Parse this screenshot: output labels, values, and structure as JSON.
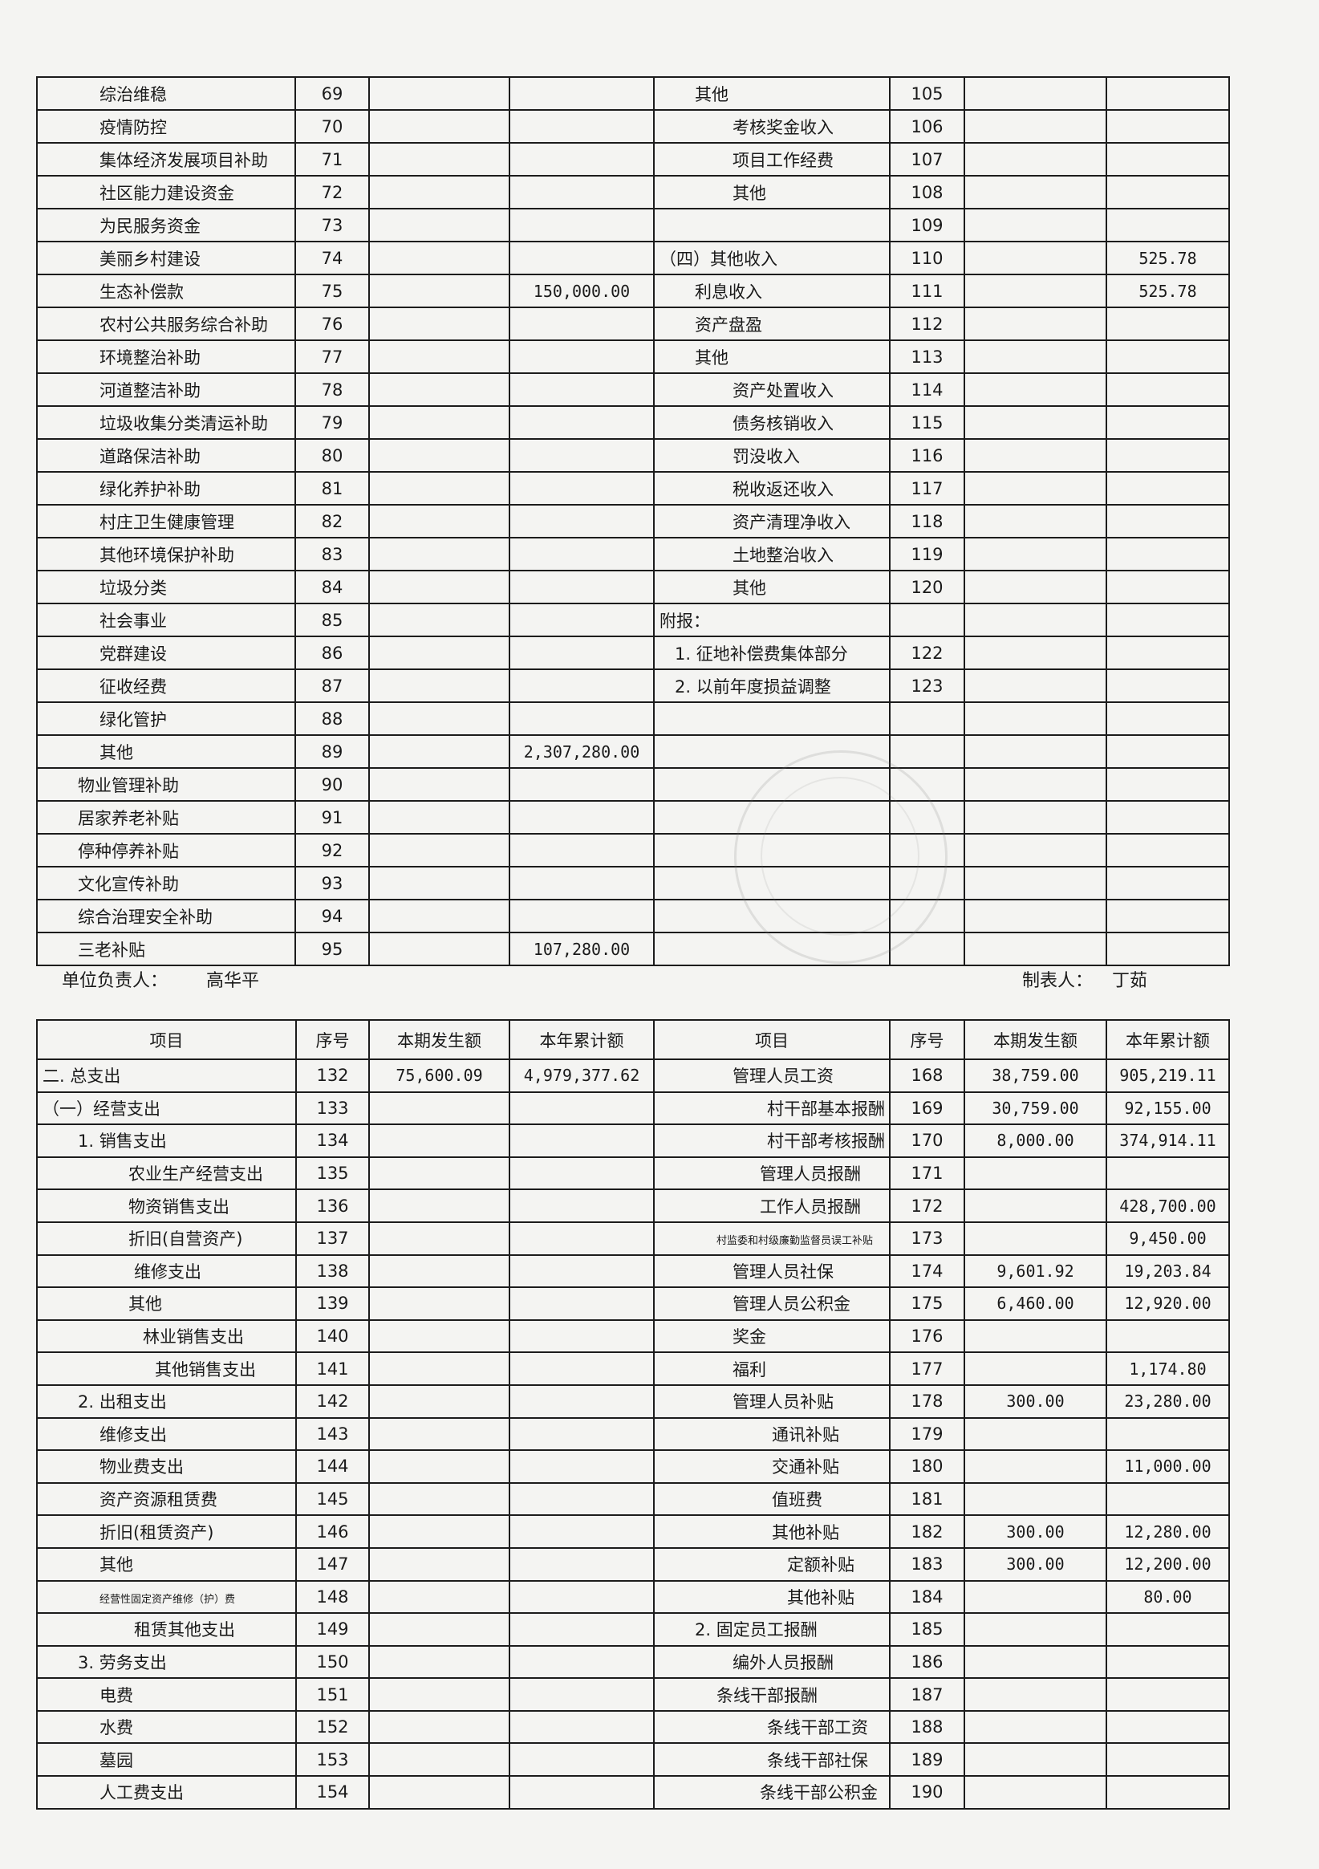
{
  "top_table": {
    "left_rows": [
      {
        "item": "综治维稳",
        "no": "69",
        "period": "",
        "ytd": "",
        "lv": 3
      },
      {
        "item": "疫情防控",
        "no": "70",
        "period": "",
        "ytd": "",
        "lv": 3
      },
      {
        "item": "集体经济发展项目补助",
        "no": "71",
        "period": "",
        "ytd": "",
        "lv": 3
      },
      {
        "item": "社区能力建设资金",
        "no": "72",
        "period": "",
        "ytd": "",
        "lv": 3
      },
      {
        "item": "为民服务资金",
        "no": "73",
        "period": "",
        "ytd": "",
        "lv": 3
      },
      {
        "item": "美丽乡村建设",
        "no": "74",
        "period": "",
        "ytd": "",
        "lv": 3
      },
      {
        "item": "生态补偿款",
        "no": "75",
        "period": "",
        "ytd": "150,000.00",
        "lv": 3
      },
      {
        "item": "农村公共服务综合补助",
        "no": "76",
        "period": "",
        "ytd": "",
        "lv": 3
      },
      {
        "item": "环境整治补助",
        "no": "77",
        "period": "",
        "ytd": "",
        "lv": 3
      },
      {
        "item": "河道整洁补助",
        "no": "78",
        "period": "",
        "ytd": "",
        "lv": 3
      },
      {
        "item": "垃圾收集分类清运补助",
        "no": "79",
        "period": "",
        "ytd": "",
        "lv": 3
      },
      {
        "item": "道路保洁补助",
        "no": "80",
        "period": "",
        "ytd": "",
        "lv": 3
      },
      {
        "item": "绿化养护补助",
        "no": "81",
        "period": "",
        "ytd": "",
        "lv": 3
      },
      {
        "item": "村庄卫生健康管理",
        "no": "82",
        "period": "",
        "ytd": "",
        "lv": 3
      },
      {
        "item": "其他环境保护补助",
        "no": "83",
        "period": "",
        "ytd": "",
        "lv": 3
      },
      {
        "item": "垃圾分类",
        "no": "84",
        "period": "",
        "ytd": "",
        "lv": 3
      },
      {
        "item": "社会事业",
        "no": "85",
        "period": "",
        "ytd": "",
        "lv": 3
      },
      {
        "item": "党群建设",
        "no": "86",
        "period": "",
        "ytd": "",
        "lv": 3
      },
      {
        "item": "征收经费",
        "no": "87",
        "period": "",
        "ytd": "",
        "lv": 3
      },
      {
        "item": "绿化管护",
        "no": "88",
        "period": "",
        "ytd": "",
        "lv": 3
      },
      {
        "item": "其他",
        "no": "89",
        "period": "",
        "ytd": "2,307,280.00",
        "lv": 3
      },
      {
        "item": "物业管理补助",
        "no": "90",
        "period": "",
        "ytd": "",
        "lv": 2
      },
      {
        "item": "居家养老补贴",
        "no": "91",
        "period": "",
        "ytd": "",
        "lv": 2
      },
      {
        "item": "停种停养补贴",
        "no": "92",
        "period": "",
        "ytd": "",
        "lv": 2
      },
      {
        "item": "文化宣传补助",
        "no": "93",
        "period": "",
        "ytd": "",
        "lv": 2
      },
      {
        "item": "综合治理安全补助",
        "no": "94",
        "period": "",
        "ytd": "",
        "lv": 2
      },
      {
        "item": "三老补贴",
        "no": "95",
        "period": "",
        "ytd": "107,280.00",
        "lv": 2
      }
    ],
    "right_rows": [
      {
        "item": "其他",
        "no": "105",
        "period": "",
        "ytd": "",
        "lv": 2
      },
      {
        "item": "考核奖金收入",
        "no": "106",
        "period": "",
        "ytd": "",
        "lv": 5
      },
      {
        "item": "项目工作经费",
        "no": "107",
        "period": "",
        "ytd": "",
        "lv": 5
      },
      {
        "item": "其他",
        "no": "108",
        "period": "",
        "ytd": "",
        "lv": 5
      },
      {
        "item": "",
        "no": "109",
        "period": "",
        "ytd": "",
        "lv": 0
      },
      {
        "item": "（四）其他收入",
        "no": "110",
        "period": "",
        "ytd": "525.78",
        "lv": 0
      },
      {
        "item": "利息收入",
        "no": "111",
        "period": "",
        "ytd": "525.78",
        "lv": 2
      },
      {
        "item": "资产盘盈",
        "no": "112",
        "period": "",
        "ytd": "",
        "lv": 2
      },
      {
        "item": "其他",
        "no": "113",
        "period": "",
        "ytd": "",
        "lv": 2
      },
      {
        "item": "资产处置收入",
        "no": "114",
        "period": "",
        "ytd": "",
        "lv": 5
      },
      {
        "item": "债务核销收入",
        "no": "115",
        "period": "",
        "ytd": "",
        "lv": 5
      },
      {
        "item": "罚没收入",
        "no": "116",
        "period": "",
        "ytd": "",
        "lv": 5
      },
      {
        "item": "税收返还收入",
        "no": "117",
        "period": "",
        "ytd": "",
        "lv": 5
      },
      {
        "item": "资产清理净收入",
        "no": "118",
        "period": "",
        "ytd": "",
        "lv": 5
      },
      {
        "item": "土地整治收入",
        "no": "119",
        "period": "",
        "ytd": "",
        "lv": 5
      },
      {
        "item": "其他",
        "no": "120",
        "period": "",
        "ytd": "",
        "lv": 5
      },
      {
        "item": "附报：",
        "no": "",
        "period": "",
        "ytd": "",
        "lv": 0
      },
      {
        "item": "1. 征地补偿费集体部分",
        "no": "122",
        "period": "",
        "ytd": "",
        "lv": 1
      },
      {
        "item": "2. 以前年度损益调整",
        "no": "123",
        "period": "",
        "ytd": "",
        "lv": 1
      },
      {
        "item": "",
        "no": "",
        "period": "",
        "ytd": "",
        "lv": 0
      },
      {
        "item": "",
        "no": "",
        "period": "",
        "ytd": "",
        "lv": 0
      },
      {
        "item": "",
        "no": "",
        "period": "",
        "ytd": "",
        "lv": 0
      },
      {
        "item": "",
        "no": "",
        "period": "",
        "ytd": "",
        "lv": 0
      },
      {
        "item": "",
        "no": "",
        "period": "",
        "ytd": "",
        "lv": 0
      },
      {
        "item": "",
        "no": "",
        "period": "",
        "ytd": "",
        "lv": 0
      },
      {
        "item": "",
        "no": "",
        "period": "",
        "ytd": "",
        "lv": 0
      },
      {
        "item": "",
        "no": "",
        "period": "",
        "ytd": "",
        "lv": 0
      }
    ]
  },
  "signatures": {
    "unit_head_label": "单位负责人：",
    "unit_head": "高华平",
    "preparer_label": "制表人：",
    "preparer": "丁茹"
  },
  "bottom_table": {
    "headers": [
      "项目",
      "序号",
      "本期发生额",
      "本年累计额",
      "项目",
      "序号",
      "本期发生额",
      "本年累计额"
    ],
    "left_rows": [
      {
        "item": "二. 总支出",
        "no": "132",
        "period": "75,600.09",
        "ytd": "4,979,377.62",
        "lv": 0
      },
      {
        "item": "（一）经营支出",
        "no": "133",
        "period": "",
        "ytd": "",
        "lv": 0
      },
      {
        "item": "1. 销售支出",
        "no": "134",
        "period": "",
        "ytd": "",
        "lv": 2
      },
      {
        "item": "农业生产经营支出",
        "no": "135",
        "period": "",
        "ytd": "",
        "lv": 6
      },
      {
        "item": "物资销售支出",
        "no": "136",
        "period": "",
        "ytd": "",
        "lv": 6
      },
      {
        "item": "折旧(自营资产)",
        "no": "137",
        "period": "",
        "ytd": "",
        "lv": 6
      },
      {
        "item": "维修支出",
        "no": "138",
        "period": "",
        "ytd": "",
        "lv": 7
      },
      {
        "item": "其他",
        "no": "139",
        "period": "",
        "ytd": "",
        "lv": 6
      },
      {
        "item": "林业销售支出",
        "no": "140",
        "period": "",
        "ytd": "",
        "lv": 8
      },
      {
        "item": "其他销售支出",
        "no": "141",
        "period": "",
        "ytd": "",
        "lv": 10
      },
      {
        "item": "2. 出租支出",
        "no": "142",
        "period": "",
        "ytd": "",
        "lv": 2
      },
      {
        "item": "维修支出",
        "no": "143",
        "period": "",
        "ytd": "",
        "lv": 3
      },
      {
        "item": "物业费支出",
        "no": "144",
        "period": "",
        "ytd": "",
        "lv": 3
      },
      {
        "item": "资产资源租赁费",
        "no": "145",
        "period": "",
        "ytd": "",
        "lv": 3
      },
      {
        "item": "折旧(租赁资产)",
        "no": "146",
        "period": "",
        "ytd": "",
        "lv": 3
      },
      {
        "item": "其他",
        "no": "147",
        "period": "",
        "ytd": "",
        "lv": 3
      },
      {
        "item": "经营性固定资产维修（护）费",
        "no": "148",
        "period": "",
        "ytd": "",
        "lv": 3,
        "small": true
      },
      {
        "item": "租赁其他支出",
        "no": "149",
        "period": "",
        "ytd": "",
        "lv": 7
      },
      {
        "item": "3. 劳务支出",
        "no": "150",
        "period": "",
        "ytd": "",
        "lv": 2
      },
      {
        "item": "电费",
        "no": "151",
        "period": "",
        "ytd": "",
        "lv": 3
      },
      {
        "item": "水费",
        "no": "152",
        "period": "",
        "ytd": "",
        "lv": 3
      },
      {
        "item": "墓园",
        "no": "153",
        "period": "",
        "ytd": "",
        "lv": 3
      },
      {
        "item": "人工费支出",
        "no": "154",
        "period": "",
        "ytd": "",
        "lv": 3
      }
    ],
    "right_rows": [
      {
        "item": "管理人员工资",
        "no": "168",
        "period": "38,759.00",
        "ytd": "905,219.11",
        "lv": 5
      },
      {
        "item": "村干部基本报酬",
        "no": "169",
        "period": "30,759.00",
        "ytd": "92,155.00",
        "lv": 9
      },
      {
        "item": "村干部考核报酬",
        "no": "170",
        "period": "8,000.00",
        "ytd": "374,914.11",
        "lv": 9
      },
      {
        "item": "管理人员报酬",
        "no": "171",
        "period": "",
        "ytd": "",
        "lv": 8
      },
      {
        "item": "工作人员报酬",
        "no": "172",
        "period": "",
        "ytd": "428,700.00",
        "lv": 8
      },
      {
        "item": "村监委和村级廉勤监督员误工补贴",
        "no": "173",
        "period": "",
        "ytd": "9,450.00",
        "lv": 3,
        "small": true
      },
      {
        "item": "管理人员社保",
        "no": "174",
        "period": "9,601.92",
        "ytd": "19,203.84",
        "lv": 5
      },
      {
        "item": "管理人员公积金",
        "no": "175",
        "period": "6,460.00",
        "ytd": "12,920.00",
        "lv": 5
      },
      {
        "item": "奖金",
        "no": "176",
        "period": "",
        "ytd": "",
        "lv": 5
      },
      {
        "item": "福利",
        "no": "177",
        "period": "",
        "ytd": "1,174.80",
        "lv": 5
      },
      {
        "item": "管理人员补贴",
        "no": "178",
        "period": "300.00",
        "ytd": "23,280.00",
        "lv": 5
      },
      {
        "item": "通讯补贴",
        "no": "179",
        "period": "",
        "ytd": "",
        "lv": 10
      },
      {
        "item": "交通补贴",
        "no": "180",
        "period": "",
        "ytd": "11,000.00",
        "lv": 10
      },
      {
        "item": "值班费",
        "no": "181",
        "period": "",
        "ytd": "",
        "lv": 10
      },
      {
        "item": "其他补贴",
        "no": "182",
        "period": "300.00",
        "ytd": "12,280.00",
        "lv": 10
      },
      {
        "item": "定额补贴",
        "no": "183",
        "period": "300.00",
        "ytd": "12,200.00",
        "lv": 11
      },
      {
        "item": "其他补贴",
        "no": "184",
        "period": "",
        "ytd": "80.00",
        "lv": 11
      },
      {
        "item": "2. 固定员工报酬",
        "no": "185",
        "period": "",
        "ytd": "",
        "lv": 2
      },
      {
        "item": "编外人员报酬",
        "no": "186",
        "period": "",
        "ytd": "",
        "lv": 5
      },
      {
        "item": "条线干部报酬",
        "no": "187",
        "period": "",
        "ytd": "",
        "lv": 3
      },
      {
        "item": "条线干部工资",
        "no": "188",
        "period": "",
        "ytd": "",
        "lv": 9
      },
      {
        "item": "条线干部社保",
        "no": "189",
        "period": "",
        "ytd": "",
        "lv": 9
      },
      {
        "item": "条线干部公积金",
        "no": "190",
        "period": "",
        "ytd": "",
        "lv": 8
      }
    ]
  }
}
